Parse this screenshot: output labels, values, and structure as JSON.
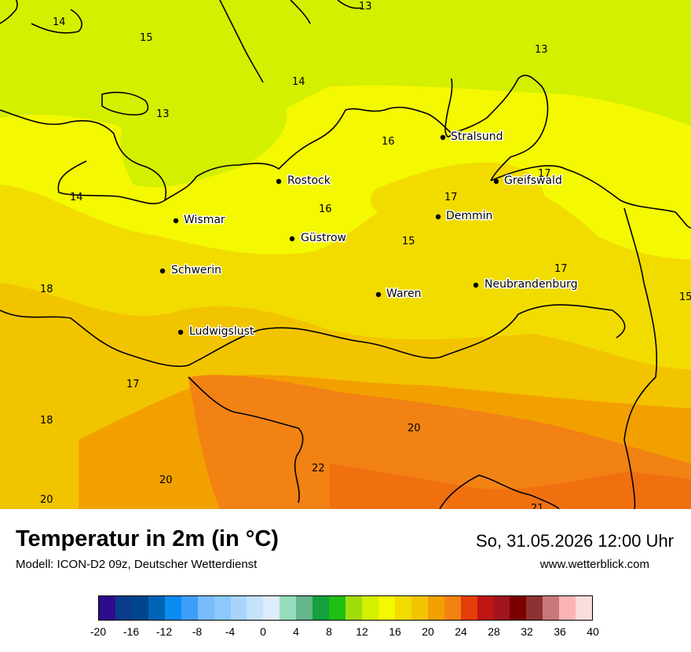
{
  "title": "Temperatur in 2m (in °C)",
  "subtitle": "Modell: ICON-D2 09z, Deutscher Wetterdienst",
  "datetime": "So, 31.05.2026 12:00 Uhr",
  "site": "www.wetterblick.com",
  "cities": [
    {
      "name": "Stralsund"
    },
    {
      "name": "Rostock"
    },
    {
      "name": "Greifswald"
    },
    {
      "name": "Wismar"
    },
    {
      "name": "Demmin"
    },
    {
      "name": "Güstrow"
    },
    {
      "name": "Schwerin"
    },
    {
      "name": "Neubrandenburg"
    },
    {
      "name": "Waren"
    },
    {
      "name": "Ludwigslust"
    }
  ],
  "temperature_labels": [
    "14",
    "13",
    "15",
    "13",
    "14",
    "13",
    "16",
    "17",
    "16",
    "14",
    "17",
    "15",
    "18",
    "17",
    "15",
    "17",
    "18",
    "20",
    "22",
    "20",
    "20",
    "21"
  ],
  "color_scale": {
    "colors": [
      "#2e0a8c",
      "#0a3c8c",
      "#00468c",
      "#0064b4",
      "#0a8cf0",
      "#3ca0fa",
      "#78bcfc",
      "#8cc8fc",
      "#a8d4fc",
      "#c4e2fc",
      "#dcecfc",
      "#96dcbe",
      "#64b48c",
      "#14a03c",
      "#1ebe14",
      "#a0dc0a",
      "#d2f000",
      "#f4f800",
      "#f2dc00",
      "#f2c400",
      "#f2a000",
      "#f28214",
      "#e63c0a",
      "#be1414",
      "#a0141e",
      "#7d0000",
      "#8c3232",
      "#c87878",
      "#fab4b4",
      "#fadcdc"
    ],
    "tick_labels": [
      "-20",
      "-16",
      "-12",
      "-8",
      "-4",
      "0",
      "4",
      "8",
      "12",
      "16",
      "20",
      "24",
      "28",
      "32",
      "36",
      "40"
    ]
  }
}
